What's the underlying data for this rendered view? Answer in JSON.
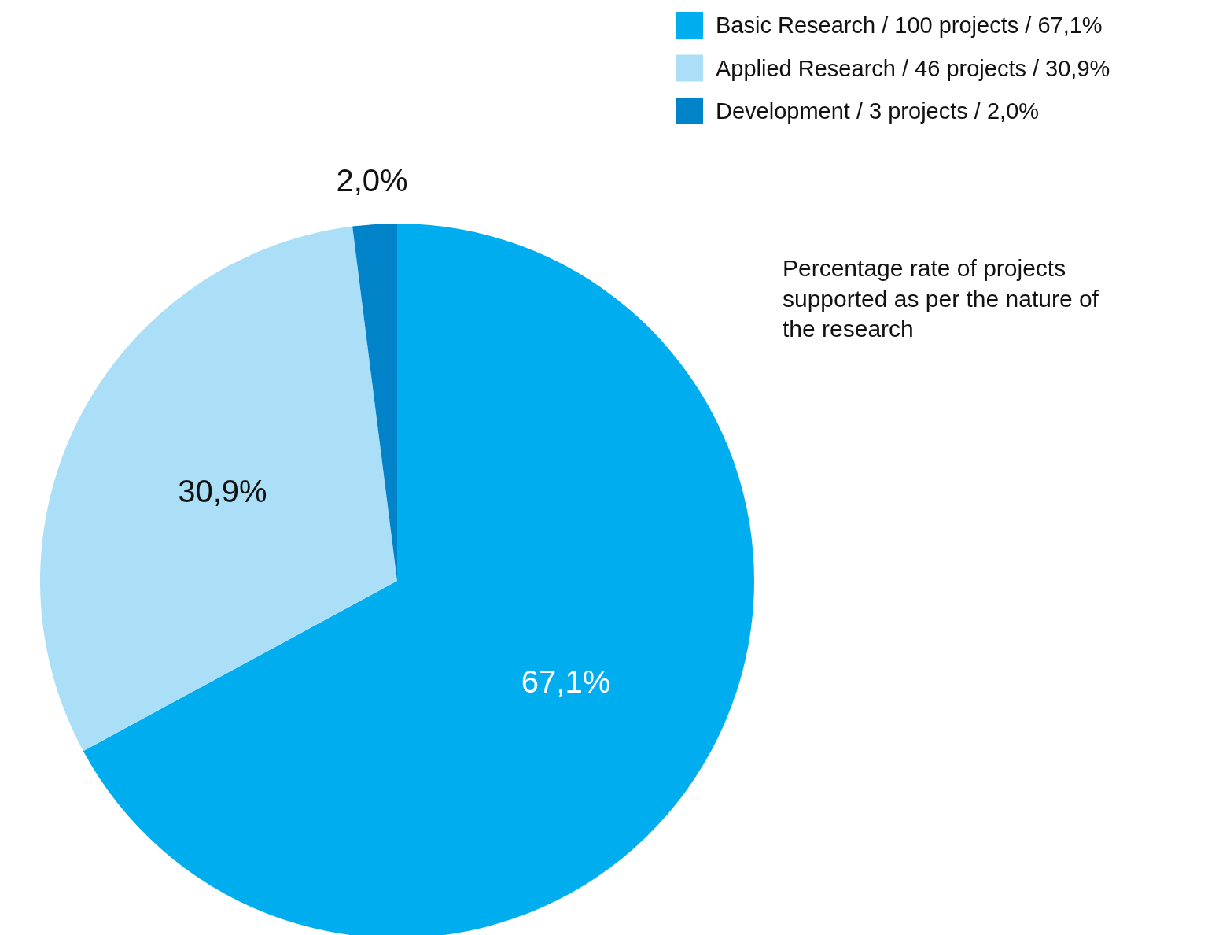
{
  "chart_data": {
    "type": "pie",
    "title": "Percentage rate of projects supported as per the nature of the research",
    "categories": [
      "Basic Research / 100 projects / 67,1%",
      "Applied Research / 46 projects / 30,9%",
      "Development / 3 projects / 2,0%"
    ],
    "values": [
      67.1,
      30.9,
      2.0
    ],
    "colors": [
      "#00aeef",
      "#abdff8",
      "#0083c9"
    ],
    "value_labels": [
      "67,1%",
      "30,9%",
      "2,0%"
    ],
    "legend": "top right"
  }
}
